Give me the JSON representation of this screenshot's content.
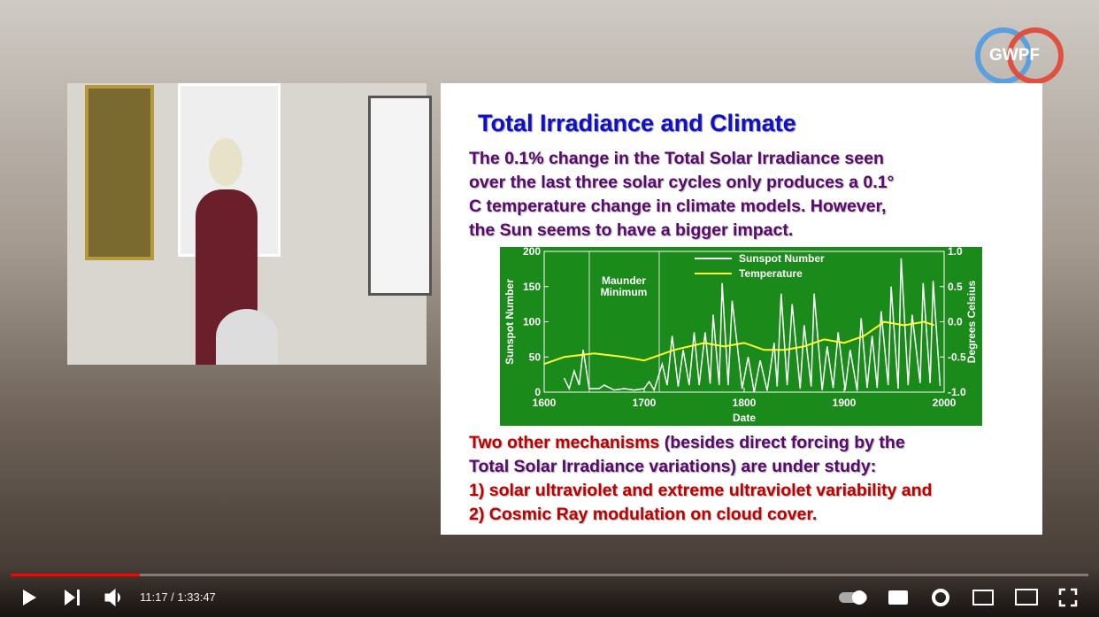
{
  "player": {
    "logo": "GWPF",
    "time": "11:17 / 1:33:47"
  },
  "slide": {
    "title": "Total Irradiance and Climate",
    "paragraph1": [
      "The 0.1% change in the Total Solar Irradiance seen",
      "over the last three solar cycles only produces a 0.1°",
      "C temperature change in climate models. However,",
      "the Sun seems to have a bigger impact."
    ],
    "paragraph2": {
      "highlight": "Two other mechanisms",
      "rest1": " (besides direct forcing by the",
      "line2": "Total Solar Irradiance variations) are under study:",
      "item1": "1) solar ultraviolet and extreme ultraviolet variability and",
      "item2": "2) Cosmic Ray modulation on cloud cover."
    },
    "chart": {
      "type": "line",
      "x_label": "Date",
      "y_label": "Sunspot Number",
      "y2_label": "Degrees Celsius",
      "annotation": "Maunder Minimum",
      "xlim": [
        1600,
        2000
      ],
      "xticks": [
        1600,
        1700,
        1800,
        1900,
        2000
      ],
      "ylim": [
        0,
        200
      ],
      "yticks": [
        0,
        50,
        100,
        150,
        200
      ],
      "y2lim": [
        -1,
        1
      ],
      "y2ticks": [
        {
          "value": -1,
          "label": "-1.0"
        },
        -0.5,
        {
          "value": 0,
          "label": "0.0"
        },
        0.5,
        {
          "value": 1,
          "label": "1.0"
        }
      ],
      "series": [
        {
          "name": "Sunspot Number",
          "color": "#ffffff",
          "x": [
            1620,
            1625,
            1630,
            1635,
            1639,
            1645,
            1655,
            1660,
            1670,
            1680,
            1690,
            1700,
            1705,
            1710,
            1718,
            1723,
            1728,
            1734,
            1739,
            1745,
            1750,
            1755,
            1761,
            1766,
            1769,
            1775,
            1778,
            1784,
            1788,
            1798,
            1804,
            1810,
            1816,
            1823,
            1830,
            1833,
            1837,
            1843,
            1848,
            1856,
            1860,
            1867,
            1870,
            1878,
            1883,
            1889,
            1894,
            1901,
            1906,
            1913,
            1917,
            1923,
            1928,
            1933,
            1937,
            1944,
            1947,
            1954,
            1957,
            1964,
            1968,
            1976,
            1979,
            1986,
            1989,
            1996
          ],
          "values": [
            20,
            5,
            30,
            10,
            60,
            5,
            5,
            10,
            3,
            5,
            3,
            5,
            15,
            3,
            40,
            10,
            80,
            8,
            60,
            10,
            85,
            10,
            85,
            12,
            110,
            10,
            155,
            10,
            130,
            5,
            50,
            0,
            45,
            2,
            70,
            8,
            140,
            10,
            125,
            5,
            95,
            8,
            140,
            3,
            65,
            6,
            85,
            3,
            60,
            2,
            105,
            6,
            80,
            6,
            115,
            10,
            150,
            5,
            190,
            10,
            110,
            13,
            155,
            13,
            158,
            9
          ]
        },
        {
          "name": "Temperature",
          "color": "#ffff33",
          "axis": "y2",
          "x": [
            1600,
            1620,
            1650,
            1680,
            1700,
            1730,
            1760,
            1780,
            1800,
            1820,
            1840,
            1860,
            1880,
            1900,
            1920,
            1940,
            1960,
            1980,
            1990
          ],
          "values": [
            -0.6,
            -0.5,
            -0.45,
            -0.5,
            -0.55,
            -0.4,
            -0.3,
            -0.35,
            -0.3,
            -0.4,
            -0.4,
            -0.35,
            -0.25,
            -0.3,
            -0.2,
            0,
            -0.05,
            0,
            -0.05
          ]
        }
      ]
    }
  }
}
